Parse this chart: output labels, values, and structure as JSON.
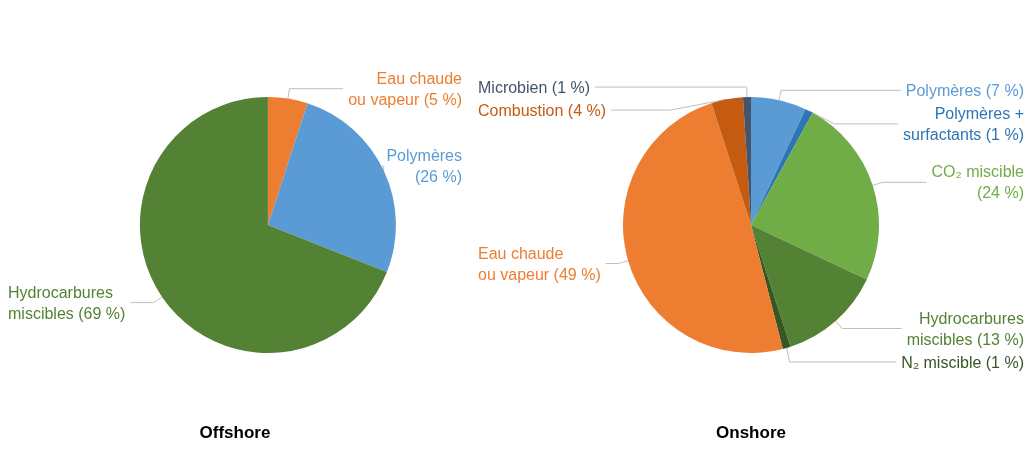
{
  "chart_data": [
    {
      "type": "pie",
      "title": "Offshore",
      "categories": [
        "Eau chaude\nou vapeur",
        "Polymères\n",
        "Hydrocarbures\nmiscibles"
      ],
      "values": [
        5,
        26,
        69
      ],
      "value_labels": [
        "(5 %)",
        "(26 %)",
        "(69 %)"
      ],
      "colors": [
        "#ed7d31",
        "#5b9bd5",
        "#548235"
      ],
      "legend": false
    },
    {
      "type": "pie",
      "title": "Onshore",
      "categories": [
        "Polymères",
        "Polymères +\nsurfactants",
        "CO₂ miscible\n",
        "Hydrocarbures\nmiscibles",
        "N₂ miscible",
        "Eau chaude\nou vapeur",
        "Combustion",
        "Microbien"
      ],
      "values": [
        7,
        1,
        24,
        13,
        1,
        49,
        4,
        1
      ],
      "value_labels": [
        "(7 %)",
        "(1 %)",
        "(24 %)",
        "(13 %)",
        "(1 %)",
        "(49 %)",
        "(4 %)",
        "(1 %)"
      ],
      "colors": [
        "#5b9bd5",
        "#2e75b6",
        "#70ad47",
        "#548235",
        "#375623",
        "#ed7d31",
        "#c55a11",
        "#44546a"
      ],
      "legend": false
    }
  ]
}
